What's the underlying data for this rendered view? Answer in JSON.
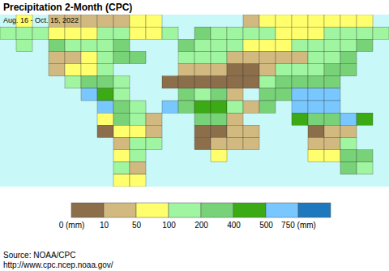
{
  "chart_data": {
    "type": "heatmap",
    "title": "Precipitation 2-Month (CPC)",
    "subtitle": "Aug. 16 - Oct. 15, 2022",
    "annotations": [
      "Source: NOAA/CPC",
      "http://www.cpc.ncep.noaa.gov/"
    ],
    "tick_labels": false,
    "xlim": [
      -180,
      180
    ],
    "ylim": [
      80,
      -60
    ],
    "x": [
      -180,
      -165,
      -150,
      -135,
      -120,
      -105,
      -90,
      -75,
      -60,
      -45,
      -30,
      -15,
      0,
      15,
      30,
      45,
      60,
      75,
      90,
      105,
      120,
      135,
      150,
      165
    ],
    "y": [
      80,
      70,
      60,
      50,
      40,
      30,
      20,
      10,
      0,
      -10,
      -20,
      -30,
      -40,
      -50
    ],
    "cells": [
      [
        null,
        70,
        null,
        40,
        40,
        40,
        30,
        30,
        60,
        80,
        null,
        null,
        null,
        null,
        null,
        40,
        50,
        60,
        60,
        60,
        50,
        50,
        60,
        null
      ],
      [
        100,
        150,
        150,
        80,
        80,
        80,
        100,
        120,
        80,
        80,
        150,
        null,
        200,
        150,
        120,
        100,
        100,
        80,
        80,
        80,
        100,
        100,
        120,
        120
      ],
      [
        null,
        150,
        null,
        250,
        100,
        120,
        150,
        200,
        null,
        null,
        null,
        200,
        120,
        120,
        100,
        60,
        60,
        80,
        100,
        100,
        100,
        120,
        200,
        null
      ],
      [
        null,
        null,
        null,
        40,
        30,
        80,
        150,
        200,
        200,
        null,
        null,
        100,
        150,
        100,
        40,
        20,
        20,
        30,
        40,
        100,
        150,
        250,
        null,
        null
      ],
      [
        null,
        null,
        null,
        10,
        50,
        80,
        150,
        null,
        null,
        null,
        null,
        20,
        10,
        10,
        5,
        5,
        20,
        100,
        120,
        100,
        250,
        300,
        null,
        null
      ],
      [
        null,
        null,
        null,
        null,
        100,
        200,
        250,
        150,
        null,
        null,
        5,
        5,
        5,
        5,
        2,
        2,
        100,
        250,
        300,
        200,
        300,
        null,
        null,
        null
      ],
      [
        null,
        null,
        null,
        null,
        null,
        500,
        400,
        150,
        null,
        null,
        null,
        300,
        150,
        200,
        40,
        null,
        200,
        300,
        500,
        600,
        700,
        null,
        null,
        null
      ],
      [
        null,
        null,
        null,
        null,
        null,
        null,
        500,
        300,
        150,
        null,
        700,
        300,
        400,
        400,
        150,
        10,
        200,
        null,
        500,
        600,
        500,
        null,
        null,
        null
      ],
      [
        null,
        null,
        null,
        null,
        null,
        null,
        50,
        200,
        100,
        20,
        null,
        null,
        300,
        350,
        30,
        null,
        null,
        null,
        400,
        300,
        300,
        500,
        400,
        null
      ],
      [
        null,
        null,
        null,
        null,
        null,
        null,
        5,
        50,
        60,
        30,
        null,
        null,
        5,
        5,
        10,
        20,
        null,
        null,
        null,
        5,
        10,
        30,
        null,
        null
      ],
      [
        null,
        null,
        null,
        null,
        null,
        null,
        null,
        10,
        150,
        100,
        null,
        null,
        2,
        10,
        40,
        30,
        null,
        null,
        null,
        10,
        20,
        150,
        null,
        null
      ],
      [
        null,
        null,
        null,
        null,
        null,
        null,
        null,
        60,
        100,
        null,
        null,
        null,
        null,
        60,
        null,
        null,
        null,
        null,
        null,
        80,
        60,
        200,
        200,
        null
      ],
      [
        null,
        null,
        null,
        null,
        null,
        null,
        null,
        150,
        40,
        null,
        null,
        null,
        null,
        null,
        null,
        null,
        null,
        null,
        null,
        null,
        null,
        200,
        150,
        null
      ],
      [
        null,
        null,
        null,
        null,
        null,
        null,
        null,
        80,
        50,
        null,
        null,
        null,
        null,
        null,
        null,
        null,
        null,
        null,
        null,
        null,
        null,
        null,
        null,
        null
      ]
    ],
    "colorbar": {
      "ticks": [
        {
          "value": 0,
          "label": "0 (mm)"
        },
        10,
        50,
        100,
        200,
        400,
        500,
        {
          "value": 750,
          "label": "750 (mm)"
        }
      ],
      "colors": [
        "#8c6e4b",
        "#d2b97f",
        "#ffff6e",
        "#a0f5a0",
        "#78d278",
        "#3caa14",
        "#78c8ff",
        "#1e78be"
      ]
    }
  }
}
